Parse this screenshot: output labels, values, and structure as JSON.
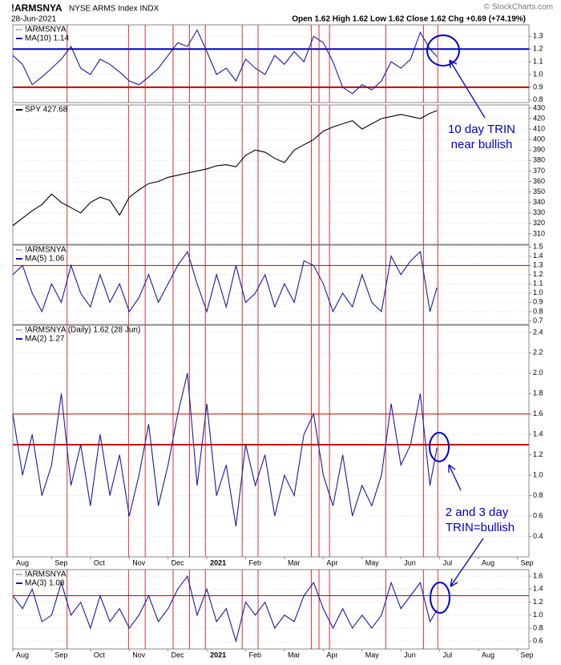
{
  "header": {
    "symbol": "!ARMSNYA",
    "name": "NYSE ARMS Index INDX",
    "date": "28-Jun-2021",
    "quote": "Open 1.62  High 1.62  Low 1.62  Close 1.62  Chg +0.69 (+74.19%)",
    "source": "© StockCharts.com"
  },
  "annotations": [
    "10 day TRIN",
    "near bullish",
    "2 and 3 day",
    "TRIN=bullish"
  ],
  "event_lines": [
    1.4,
    2.98,
    3.41,
    4.13,
    4.55,
    4.96,
    5.91,
    6.32,
    7.69,
    7.89,
    8.16,
    9.61,
    10.58,
    10.95
  ],
  "chart_data": [
    {
      "type": "line",
      "legend_title": "!ARMSNYA",
      "x": [
        0,
        0.25,
        0.5,
        0.75,
        1,
        1.25,
        1.5,
        1.75,
        2,
        2.25,
        2.5,
        2.75,
        3,
        3.25,
        3.5,
        3.75,
        4,
        4.25,
        4.5,
        4.75,
        5,
        5.25,
        5.5,
        5.75,
        6,
        6.25,
        6.5,
        6.75,
        7,
        7.25,
        7.5,
        7.75,
        8,
        8.25,
        8.5,
        8.75,
        9,
        9.25,
        9.5,
        9.75,
        10,
        10.25,
        10.5,
        10.75,
        10.93
      ],
      "series": [
        {
          "name": "MA(10) 1.14",
          "color": "#1a1aa6",
          "values": [
            1.15,
            1.08,
            0.92,
            0.98,
            1.05,
            1.12,
            1.22,
            1.05,
            1.0,
            1.12,
            1.08,
            1.02,
            0.95,
            0.92,
            0.98,
            1.05,
            1.15,
            1.25,
            1.22,
            1.35,
            1.18,
            1.0,
            1.05,
            0.95,
            1.12,
            1.05,
            1.0,
            1.15,
            1.08,
            1.18,
            1.1,
            1.3,
            1.25,
            1.1,
            0.9,
            0.85,
            0.92,
            0.88,
            0.95,
            1.1,
            1.05,
            1.12,
            1.33,
            1.2,
            1.14
          ]
        }
      ],
      "xlim": [
        0,
        13.3
      ],
      "ylim": [
        0.78,
        1.39
      ],
      "yticks": [
        0.8,
        0.9,
        {
          "value": 1,
          "label": "1.0"
        },
        1.1,
        1.2,
        1.3
      ],
      "hlines": [
        {
          "value": 1.2,
          "color": "#0000cc"
        },
        {
          "value": 0.9,
          "color": "#cc0000"
        }
      ],
      "grid": true
    },
    {
      "type": "line",
      "x": [
        0,
        0.25,
        0.5,
        0.75,
        1,
        1.25,
        1.5,
        1.75,
        2,
        2.25,
        2.5,
        2.75,
        3,
        3.25,
        3.5,
        3.75,
        4,
        4.25,
        4.5,
        4.75,
        5,
        5.25,
        5.5,
        5.75,
        6,
        6.25,
        6.5,
        6.75,
        7,
        7.25,
        7.5,
        7.75,
        8,
        8.25,
        8.5,
        8.75,
        9,
        9.25,
        9.5,
        9.75,
        10,
        10.25,
        10.5,
        10.75,
        10.93
      ],
      "series": [
        {
          "name": "SPY 427.68",
          "color": "#000000",
          "values": [
            318,
            325,
            332,
            338,
            348,
            340,
            335,
            330,
            340,
            345,
            342,
            328,
            345,
            352,
            358,
            360,
            364,
            366,
            368,
            370,
            372,
            375,
            376,
            374,
            385,
            390,
            388,
            382,
            378,
            390,
            395,
            400,
            408,
            412,
            415,
            418,
            410,
            415,
            420,
            422,
            424,
            422,
            420,
            425,
            427.68
          ]
        }
      ],
      "xlim": [
        0,
        13.3
      ],
      "ylim": [
        300,
        433
      ],
      "yticks": [
        310,
        320,
        330,
        340,
        350,
        360,
        370,
        380,
        390,
        400,
        410,
        420,
        430
      ],
      "grid": true
    },
    {
      "type": "line",
      "legend_title": "!ARMSNYA",
      "x": [
        0,
        0.25,
        0.5,
        0.75,
        1,
        1.25,
        1.5,
        1.75,
        2,
        2.25,
        2.5,
        2.75,
        3,
        3.25,
        3.5,
        3.75,
        4,
        4.25,
        4.5,
        4.75,
        5,
        5.25,
        5.5,
        5.75,
        6,
        6.25,
        6.5,
        6.75,
        7,
        7.25,
        7.5,
        7.75,
        8,
        8.25,
        8.5,
        8.75,
        9,
        9.25,
        9.5,
        9.75,
        10,
        10.25,
        10.5,
        10.75,
        10.93
      ],
      "series": [
        {
          "name": "MA(5) 1.06",
          "color": "#1a1aa6",
          "values": [
            1.2,
            1.3,
            1.0,
            0.8,
            1.1,
            0.9,
            1.3,
            1.0,
            0.85,
            1.2,
            0.9,
            1.1,
            0.8,
            0.95,
            1.2,
            0.9,
            1.1,
            1.3,
            1.45,
            1.1,
            0.8,
            1.2,
            0.85,
            1.3,
            0.9,
            1.0,
            1.2,
            0.85,
            1.1,
            0.9,
            1.35,
            1.3,
            1.1,
            0.8,
            1.0,
            0.85,
            1.2,
            0.9,
            0.8,
            1.4,
            1.2,
            1.35,
            1.45,
            0.8,
            1.06
          ]
        }
      ],
      "xlim": [
        0,
        13.3
      ],
      "ylim": [
        0.66,
        1.52
      ],
      "yticks": [
        0.7,
        0.8,
        0.9,
        {
          "value": 1,
          "label": "1.0"
        },
        1.1,
        1.2,
        1.3,
        1.4,
        1.5
      ],
      "hlines": [
        {
          "value": 1.3,
          "color": "#cc0000"
        }
      ],
      "grid": true
    },
    {
      "type": "line",
      "legend_title": "!ARMSNYA (Daily) 1.62 (28 Jun)",
      "x": [
        0,
        0.25,
        0.5,
        0.75,
        1,
        1.25,
        1.5,
        1.75,
        2,
        2.25,
        2.5,
        2.75,
        3,
        3.25,
        3.5,
        3.75,
        4,
        4.25,
        4.5,
        4.75,
        5,
        5.25,
        5.5,
        5.75,
        6,
        6.25,
        6.5,
        6.75,
        7,
        7.25,
        7.5,
        7.75,
        8,
        8.25,
        8.5,
        8.75,
        9,
        9.25,
        9.5,
        9.75,
        10,
        10.25,
        10.5,
        10.75,
        10.93
      ],
      "series": [
        {
          "name": "MA(2) 1.27",
          "color": "#1a1aa6",
          "values": [
            1.6,
            1.0,
            1.4,
            0.8,
            1.1,
            1.8,
            0.9,
            1.3,
            0.7,
            1.4,
            0.8,
            1.2,
            0.6,
            1.0,
            1.5,
            0.7,
            1.1,
            1.6,
            2.0,
            0.9,
            1.7,
            0.8,
            1.1,
            0.5,
            1.3,
            0.9,
            1.2,
            0.6,
            1.0,
            0.8,
            1.4,
            1.6,
            1.0,
            0.7,
            1.2,
            0.6,
            0.9,
            0.7,
            1.0,
            1.7,
            1.1,
            1.3,
            1.8,
            0.9,
            1.27
          ]
        }
      ],
      "xlim": [
        0,
        13.3
      ],
      "ylim": [
        0.2,
        2.47
      ],
      "yticks": [
        0.4,
        0.6,
        0.8,
        {
          "value": 1,
          "label": "1.0"
        },
        1.2,
        1.4,
        1.6,
        1.8,
        {
          "value": 2,
          "label": "2.0"
        },
        2.2,
        2.4
      ],
      "xticks": [
        {
          "value": 0,
          "label": "Aug"
        },
        {
          "value": 1,
          "label": "Sep"
        },
        {
          "value": 2,
          "label": "Oct"
        },
        {
          "value": 3,
          "label": "Nov"
        },
        {
          "value": 4,
          "label": "Dec"
        },
        {
          "value": 5,
          "label": "2021"
        },
        {
          "value": 6,
          "label": "Feb"
        },
        {
          "value": 7,
          "label": "Mar"
        },
        {
          "value": 8,
          "label": "Apr"
        },
        {
          "value": 9,
          "label": "May"
        },
        {
          "value": 10,
          "label": "Jun"
        },
        {
          "value": 11,
          "label": "Jul"
        },
        {
          "value": 12,
          "label": "Aug"
        },
        {
          "value": 13,
          "label": "Sep"
        }
      ],
      "hlines": [
        {
          "value": 1.6,
          "color": "#cc0000"
        },
        {
          "value": 1.3,
          "color": "#cc0000",
          "bold": true
        }
      ],
      "grid": true
    },
    {
      "type": "line",
      "legend_title": "!ARMSNYA",
      "x": [
        0,
        0.25,
        0.5,
        0.75,
        1,
        1.25,
        1.5,
        1.75,
        2,
        2.25,
        2.5,
        2.75,
        3,
        3.25,
        3.5,
        3.75,
        4,
        4.25,
        4.5,
        4.75,
        5,
        5.25,
        5.5,
        5.75,
        6,
        6.25,
        6.5,
        6.75,
        7,
        7.25,
        7.5,
        7.75,
        8,
        8.25,
        8.5,
        8.75,
        9,
        9.25,
        9.5,
        9.75,
        10,
        10.25,
        10.5,
        10.75,
        10.93
      ],
      "series": [
        {
          "name": "MA(3) 1.08",
          "color": "#1a1aa6",
          "values": [
            1.3,
            1.1,
            1.4,
            0.9,
            1.0,
            1.5,
            1.0,
            1.2,
            0.8,
            1.3,
            0.9,
            1.1,
            0.8,
            1.0,
            1.3,
            0.9,
            1.1,
            1.4,
            1.6,
            1.0,
            1.4,
            0.9,
            1.1,
            0.6,
            1.2,
            1.0,
            1.2,
            0.8,
            1.0,
            0.9,
            1.3,
            1.5,
            1.1,
            0.8,
            1.1,
            0.8,
            1.0,
            0.8,
            1.0,
            1.5,
            1.1,
            1.3,
            1.5,
            0.9,
            1.08
          ]
        }
      ],
      "xlim": [
        0,
        13.3
      ],
      "ylim": [
        0.48,
        1.7
      ],
      "yticks": [
        0.6,
        0.8,
        {
          "value": 1,
          "label": "1.0"
        },
        1.2,
        1.4,
        1.6
      ],
      "xticks": [
        {
          "value": 0,
          "label": "Aug"
        },
        {
          "value": 1,
          "label": "Sep"
        },
        {
          "value": 2,
          "label": "Oct"
        },
        {
          "value": 3,
          "label": "Nov"
        },
        {
          "value": 4,
          "label": "Dec"
        },
        {
          "value": 5,
          "label": "2021"
        },
        {
          "value": 6,
          "label": "Feb"
        },
        {
          "value": 7,
          "label": "Mar"
        },
        {
          "value": 8,
          "label": "Apr"
        },
        {
          "value": 9,
          "label": "May"
        },
        {
          "value": 10,
          "label": "Jun"
        },
        {
          "value": 11,
          "label": "Jul"
        },
        {
          "value": 12,
          "label": "Aug"
        },
        {
          "value": 13,
          "label": "Sep"
        }
      ],
      "hlines": [
        {
          "value": 1.3,
          "color": "#cc0000"
        }
      ],
      "grid": true
    }
  ]
}
